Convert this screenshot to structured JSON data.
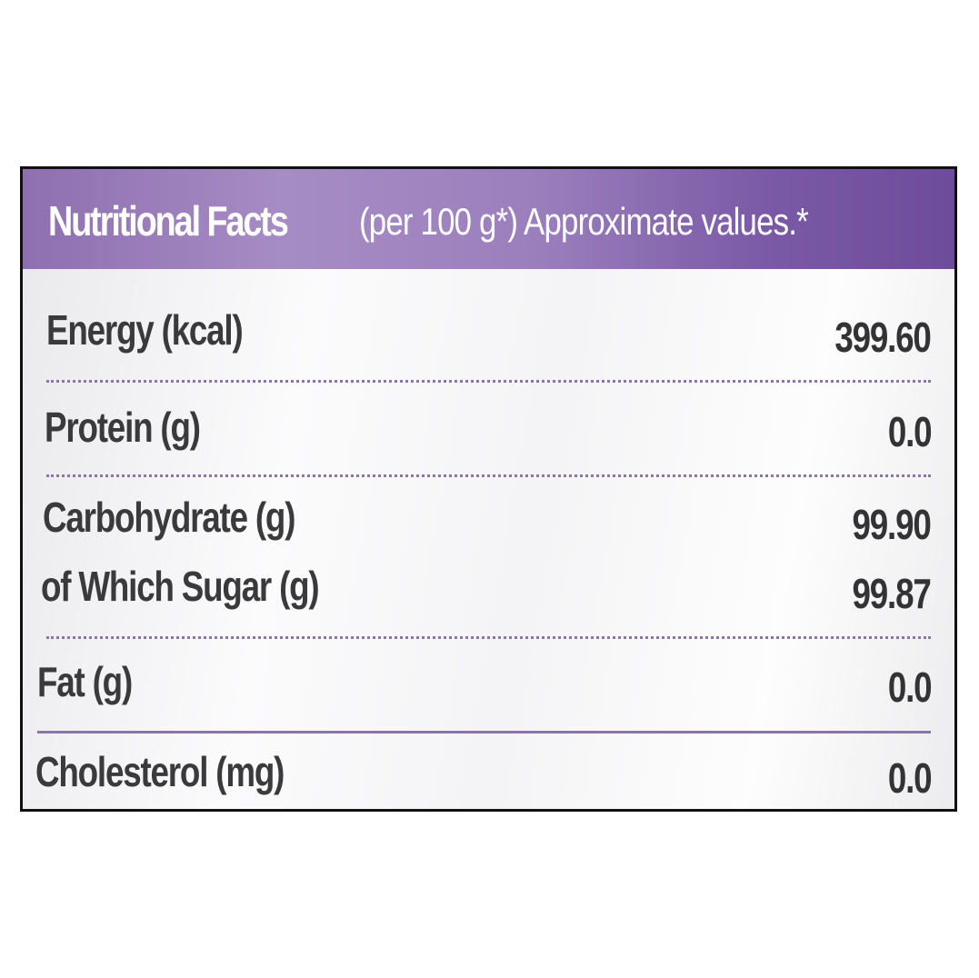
{
  "header": {
    "title": "Nutritional Facts",
    "subtitle": "(per 100 g*) Approximate values.*"
  },
  "rows": [
    {
      "label": "Energy (kcal)",
      "value": "399.60"
    },
    {
      "label": "Protein (g)",
      "value": "0.0"
    },
    {
      "label": "Carbohydrate (g)",
      "value": "99.90"
    },
    {
      "label": "of Which Sugar (g)",
      "value": "99.87"
    },
    {
      "label": "Fat (g)",
      "value": "0.0"
    },
    {
      "label": "Cholesterol (mg)",
      "value": "0.0"
    }
  ],
  "colors": {
    "header_bg": "#8e6fb0",
    "divider": "#8b75a8",
    "text": "#3a3a3c",
    "border": "#111111"
  }
}
